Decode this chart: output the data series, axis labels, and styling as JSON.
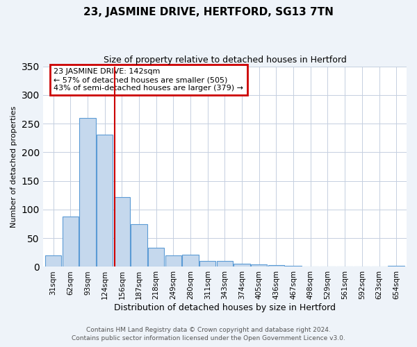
{
  "title": "23, JASMINE DRIVE, HERTFORD, SG13 7TN",
  "subtitle": "Size of property relative to detached houses in Hertford",
  "xlabel": "Distribution of detached houses by size in Hertford",
  "ylabel": "Number of detached properties",
  "bar_labels": [
    "31sqm",
    "62sqm",
    "93sqm",
    "124sqm",
    "156sqm",
    "187sqm",
    "218sqm",
    "249sqm",
    "280sqm",
    "311sqm",
    "343sqm",
    "374sqm",
    "405sqm",
    "436sqm",
    "467sqm",
    "498sqm",
    "529sqm",
    "561sqm",
    "592sqm",
    "623sqm",
    "654sqm"
  ],
  "bar_values": [
    20,
    88,
    260,
    231,
    122,
    75,
    33,
    20,
    21,
    10,
    10,
    5,
    4,
    3,
    2,
    0,
    0,
    0,
    0,
    0,
    2
  ],
  "bar_color": "#c5d8ed",
  "bar_edge_color": "#5b9bd5",
  "annotation_text_line1": "23 JASMINE DRIVE: 142sqm",
  "annotation_text_line2": "← 57% of detached houses are smaller (505)",
  "annotation_text_line3": "43% of semi-detached houses are larger (379) →",
  "annotation_box_edgecolor": "#cc0000",
  "vline_color": "#cc0000",
  "ylim": [
    0,
    350
  ],
  "footer1": "Contains HM Land Registry data © Crown copyright and database right 2024.",
  "footer2": "Contains public sector information licensed under the Open Government Licence v3.0.",
  "bg_color": "#eef3f9",
  "plot_bg_color": "#ffffff",
  "grid_color": "#c5cfe0",
  "title_fontsize": 11,
  "subtitle_fontsize": 9,
  "xlabel_fontsize": 9,
  "ylabel_fontsize": 8,
  "tick_fontsize": 7.5,
  "annot_fontsize": 8,
  "footer_fontsize": 6.5
}
